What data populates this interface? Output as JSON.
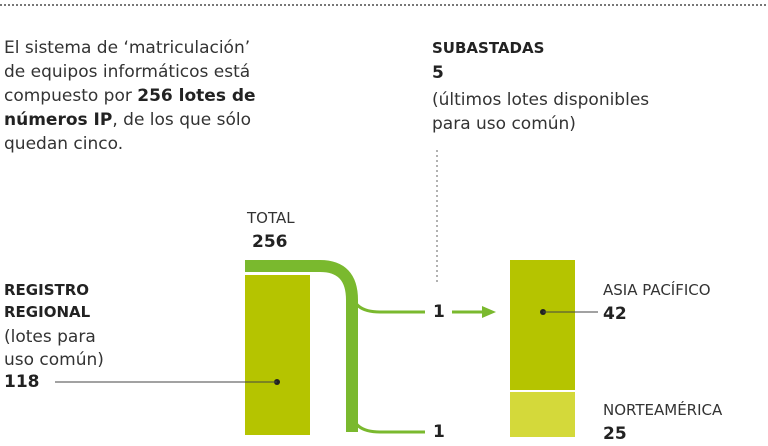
{
  "intro": {
    "lines": [
      [
        {
          "text": "El sistema de ‘matriculación’",
          "bold": false
        }
      ],
      [
        {
          "text": "de equipos informáticos  está",
          "bold": false
        }
      ],
      [
        {
          "text": "compuesto por ",
          "bold": false
        },
        {
          "text": "256 lotes de",
          "bold": true
        }
      ],
      [
        {
          "text": "números IP",
          "bold": true
        },
        {
          "text": ", de los que sólo",
          "bold": false
        }
      ],
      [
        {
          "text": "quedan cinco.",
          "bold": false
        }
      ]
    ]
  },
  "auctioned": {
    "title": "SUBASTADAS",
    "value": "5",
    "note": [
      "(últimos lotes disponibles",
      "para uso común)"
    ]
  },
  "total": {
    "label": "TOTAL",
    "value": "256"
  },
  "regional": {
    "title": [
      "REGISTRO",
      "REGIONAL"
    ],
    "note": [
      "(lotes para",
      "uso común)"
    ],
    "value": "118"
  },
  "flows": [
    "1",
    "1"
  ],
  "regions": [
    {
      "name": "ASIA PACÍFICO",
      "value": "42"
    },
    {
      "name": "NORTEAMÉRICA",
      "value": "25"
    }
  ]
}
